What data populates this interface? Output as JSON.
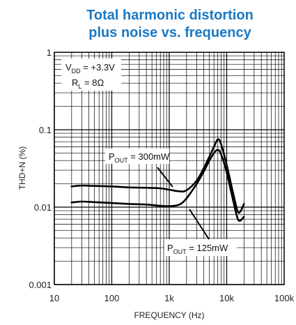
{
  "chart_data": {
    "type": "line",
    "title_lines": [
      "Total harmonic distortion",
      "plus noise vs. frequency"
    ],
    "xlabel": "FREQUENCY (Hz)",
    "ylabel": "THD+N (%)",
    "x_scale": "log",
    "y_scale": "log",
    "xlim": [
      10,
      100000
    ],
    "ylim": [
      0.001,
      1
    ],
    "x_ticks": [
      {
        "value": 10,
        "label": "10"
      },
      {
        "value": 100,
        "label": "100"
      },
      {
        "value": 1000,
        "label": "1k"
      },
      {
        "value": 10000,
        "label": "10k"
      },
      {
        "value": 100000,
        "label": "100k"
      }
    ],
    "y_ticks": [
      {
        "value": 0.001,
        "label": "0.001"
      },
      {
        "value": 0.01,
        "label": "0.01"
      },
      {
        "value": 0.1,
        "label": "0.1"
      },
      {
        "value": 1,
        "label": "1"
      }
    ],
    "grid": true,
    "conditions": {
      "vdd": {
        "main": "V",
        "sub": "DD",
        "rest": " = +3.3V"
      },
      "rl": {
        "main": "R",
        "sub": "L",
        "rest": " = 8Ω"
      }
    },
    "series": [
      {
        "name": "P_OUT = 300mW",
        "label": {
          "main": "P",
          "sub": "OUT",
          "rest": " = 300mW"
        },
        "x": [
          20,
          30,
          50,
          100,
          200,
          400,
          700,
          1000,
          1500,
          2000,
          3000,
          4000,
          5000,
          6000,
          7000,
          8000,
          10000,
          13000,
          16000,
          20000
        ],
        "y": [
          0.0185,
          0.019,
          0.0188,
          0.0185,
          0.018,
          0.0178,
          0.0175,
          0.0168,
          0.016,
          0.0165,
          0.022,
          0.032,
          0.045,
          0.06,
          0.075,
          0.065,
          0.035,
          0.015,
          0.0085,
          0.011
        ]
      },
      {
        "name": "P_OUT = 125mW",
        "label": {
          "main": "P",
          "sub": "OUT",
          "rest": " = 125mW"
        },
        "x": [
          20,
          30,
          50,
          100,
          200,
          400,
          700,
          1000,
          1500,
          2000,
          3000,
          4000,
          5000,
          6000,
          7000,
          8000,
          10000,
          13000,
          16000,
          20000
        ],
        "y": [
          0.0115,
          0.0118,
          0.0116,
          0.0113,
          0.011,
          0.0108,
          0.0104,
          0.0103,
          0.0108,
          0.013,
          0.02,
          0.029,
          0.04,
          0.05,
          0.055,
          0.048,
          0.028,
          0.012,
          0.0068,
          0.0075
        ]
      }
    ]
  }
}
